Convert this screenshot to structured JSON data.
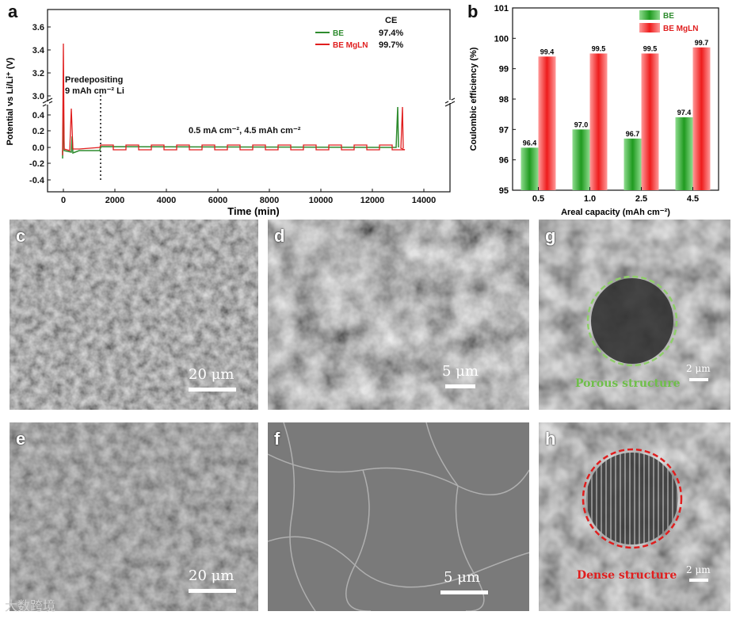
{
  "panel_a": {
    "letter": "a",
    "ylabel": "Potential vs Li/Li⁺ (V)",
    "xlabel": "Time (min)",
    "annotation_predeposit_1": "Predepositing",
    "annotation_predeposit_2": "9 mAh cm⁻² Li",
    "annotation_condition": "0.5 mA cm⁻², 4.5 mAh cm⁻²",
    "ce_header": "CE",
    "legend": [
      {
        "label": "BE",
        "ce": "97.4%",
        "color": "#2e8b2e"
      },
      {
        "label": "BE MgLN",
        "ce": "99.7%",
        "color": "#e01e1e"
      }
    ],
    "x_ticks": [
      "0",
      "2000",
      "4000",
      "6000",
      "8000",
      "10000",
      "12000",
      "14000"
    ],
    "y_ticks_lower": [
      "-0.4",
      "-0.2",
      "0.0",
      "0.2",
      "0.4"
    ],
    "y_ticks_upper": [
      "3.0",
      "3.2",
      "3.4",
      "3.6"
    ]
  },
  "chart_data": [
    {
      "type": "bar",
      "panel": "b",
      "title": "",
      "xlabel": "Areal capacity (mAh cm⁻²)",
      "ylabel": "Coulombic efficiency (%)",
      "ylim": [
        95,
        101
      ],
      "y_ticks": [
        "95",
        "96",
        "97",
        "98",
        "99",
        "100",
        "101"
      ],
      "categories": [
        "0.5",
        "1.0",
        "2.5",
        "4.5"
      ],
      "series": [
        {
          "name": "BE",
          "color": "#22a022",
          "values": [
            96.4,
            97.0,
            96.7,
            97.4
          ],
          "labels": [
            "96.4",
            "97.0",
            "96.7",
            "97.4"
          ]
        },
        {
          "name": "BE MgLN",
          "color": "#f02525",
          "values": [
            99.4,
            99.5,
            99.5,
            99.7
          ],
          "labels": [
            "99.4",
            "99.5",
            "99.5",
            "99.7"
          ]
        }
      ],
      "legend_position": "top-left"
    },
    {
      "type": "line",
      "panel": "a",
      "xlabel": "Time (min)",
      "ylabel": "Potential vs Li/Li⁺ (V)",
      "xlim": [
        -500,
        15000
      ],
      "y_break": [
        0.45,
        3.0
      ],
      "series": [
        {
          "name": "BE",
          "color": "#2e8b2e"
        },
        {
          "name": "BE MgLN",
          "color": "#e01e1e"
        }
      ]
    }
  ],
  "panel_b": {
    "letter": "b"
  },
  "sem_panels": [
    {
      "letter": "c",
      "scale": "20 μm"
    },
    {
      "letter": "d",
      "scale": "5 μm"
    },
    {
      "letter": "e",
      "scale": "20 μm"
    },
    {
      "letter": "f",
      "scale": "5 μm"
    },
    {
      "letter": "g",
      "scale": "2 μm",
      "caption": "Porous structure",
      "caption_color": "#6fbf4a"
    },
    {
      "letter": "h",
      "scale": "2 μm",
      "caption": "Dense structure",
      "caption_color": "#e01e1e"
    }
  ],
  "watermark": "大数跨境"
}
